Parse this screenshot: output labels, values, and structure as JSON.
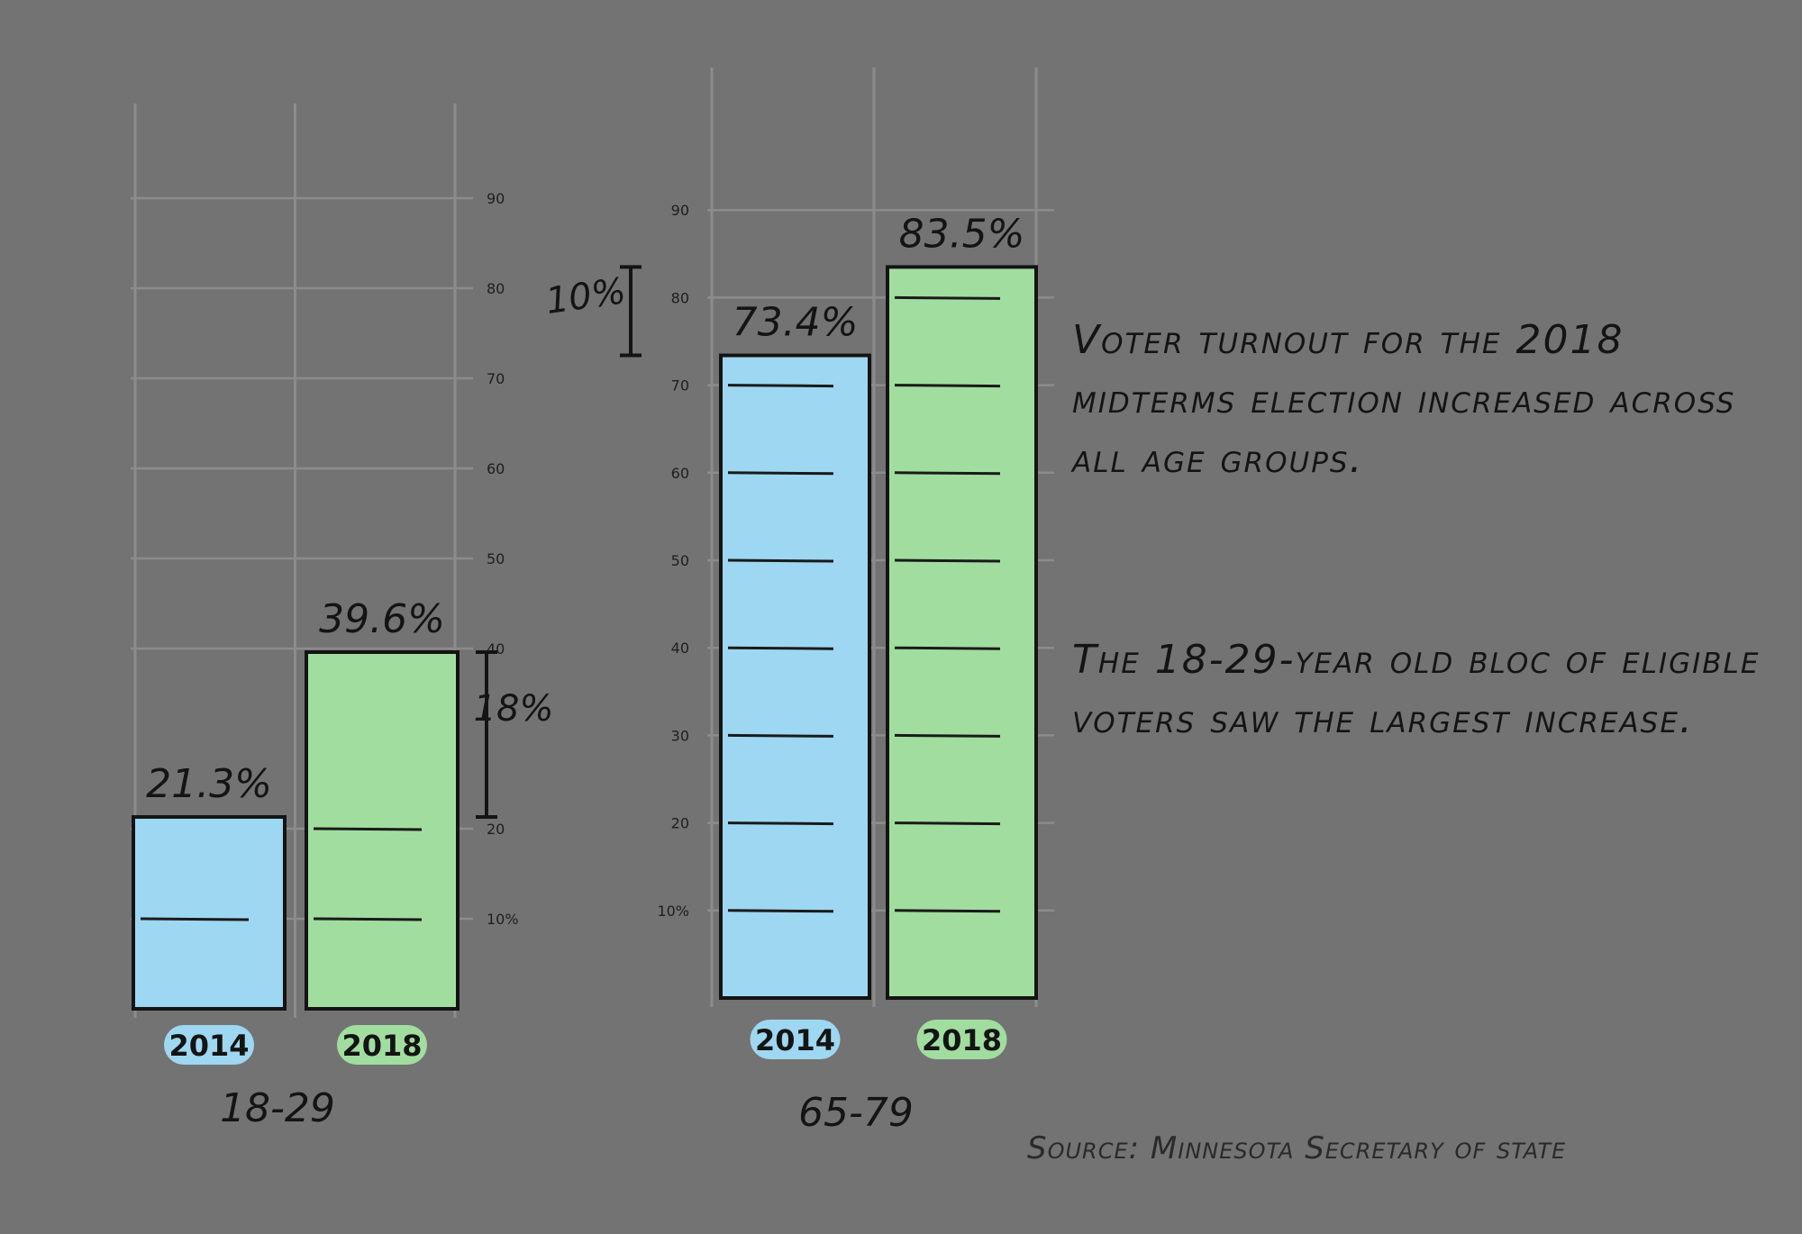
{
  "chart_data": [
    {
      "type": "bar",
      "group": "18-29",
      "categories": [
        "2014",
        "2018"
      ],
      "values": [
        21.3,
        39.6
      ],
      "value_labels": [
        "21.3%",
        "39.6%"
      ],
      "ylim": [
        0,
        90
      ],
      "y_ticks": [
        {
          "v": 10,
          "label": "10%"
        },
        {
          "v": 20,
          "label": "20"
        },
        {
          "v": 40,
          "label": "40"
        },
        {
          "v": 50,
          "label": "50"
        },
        {
          "v": 60,
          "label": "60"
        },
        {
          "v": 70,
          "label": "70"
        },
        {
          "v": 80,
          "label": "80"
        },
        {
          "v": 90,
          "label": "90"
        }
      ],
      "difference_label": "18%",
      "grid": true
    },
    {
      "type": "bar",
      "group": "65-79",
      "categories": [
        "2014",
        "2018"
      ],
      "values": [
        73.4,
        83.5
      ],
      "value_labels": [
        "73.4%",
        "83.5%"
      ],
      "ylim": [
        0,
        90
      ],
      "y_ticks": [
        {
          "v": 10,
          "label": "10%"
        },
        {
          "v": 20,
          "label": "20"
        },
        {
          "v": 30,
          "label": "30"
        },
        {
          "v": 40,
          "label": "40"
        },
        {
          "v": 50,
          "label": "50"
        },
        {
          "v": 60,
          "label": "60"
        },
        {
          "v": 70,
          "label": "70"
        },
        {
          "v": 80,
          "label": "80"
        },
        {
          "v": 90,
          "label": "90"
        }
      ],
      "difference_label": "10%",
      "grid": true
    }
  ],
  "colors": {
    "background": "#737373",
    "bar_2014": "#9ed7f1",
    "bar_2018": "#a1dd9f",
    "ink": "#141414",
    "grid": "#8c8c8c"
  },
  "notes": {
    "paragraph1": "Voter turnout for the 2018 midterms election increased across all age groups.",
    "paragraph2": "The 18-29-year old bloc of eligible voters saw the largest increase."
  },
  "source": "Source: Minnesota Secretary of state"
}
